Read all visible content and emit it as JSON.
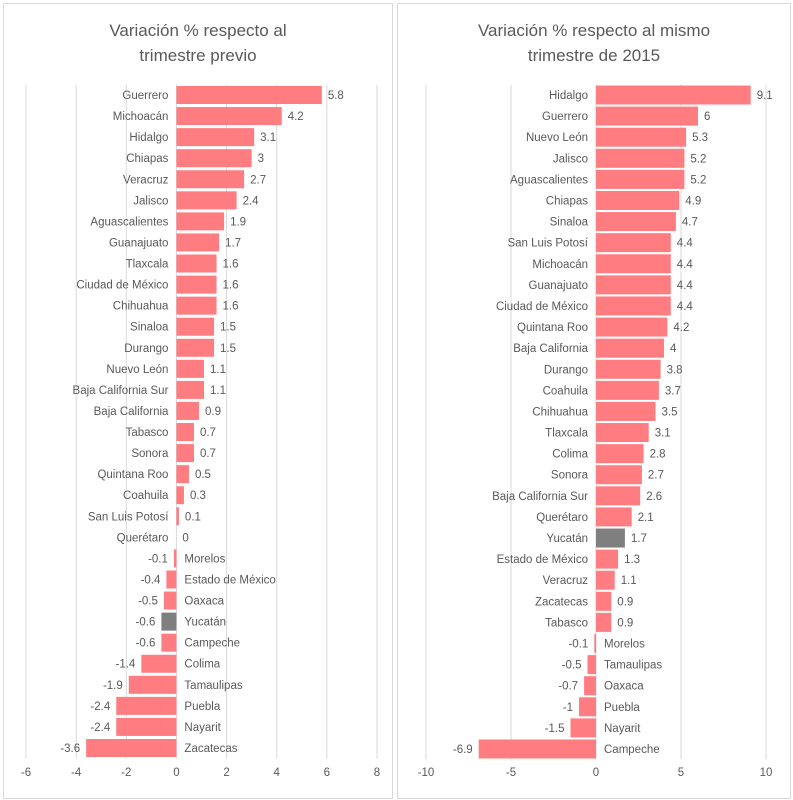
{
  "colors": {
    "bar": "#FF7C80",
    "highlight": "#7F7F7F",
    "grid": "#D9D9D9",
    "text": "#595959"
  },
  "chart_data": [
    {
      "type": "bar",
      "orientation": "horizontal",
      "title": "Variación % respecto al trimestre previo",
      "xlim": [
        -6,
        8
      ],
      "xticks": [
        -6,
        -4,
        -2,
        0,
        2,
        4,
        6,
        8
      ],
      "grid": true,
      "highlight": "Yucatán",
      "categories": [
        "Guerrero",
        "Michoacán",
        "Hidalgo",
        "Chiapas",
        "Veracruz",
        "Jalisco",
        "Aguascalientes",
        "Guanajuato",
        "Tlaxcala",
        "Ciudad de México",
        "Chihuahua",
        "Sinaloa",
        "Durango",
        "Nuevo León",
        "Baja California Sur",
        "Baja California",
        "Tabasco",
        "Sonora",
        "Quintana Roo",
        "Coahuila",
        "San Luis Potosí",
        "Querétaro",
        "Morelos",
        "Estado de México",
        "Oaxaca",
        "Yucatán",
        "Campeche",
        "Colima",
        "Tamaulipas",
        "Puebla",
        "Nayarit",
        "Zacatecas"
      ],
      "values": [
        5.8,
        4.2,
        3.1,
        3,
        2.7,
        2.4,
        1.9,
        1.7,
        1.6,
        1.6,
        1.6,
        1.5,
        1.5,
        1.1,
        1.1,
        0.9,
        0.7,
        0.7,
        0.5,
        0.3,
        0.1,
        0,
        -0.1,
        -0.4,
        -0.5,
        -0.6,
        -0.6,
        -1.4,
        -1.9,
        -2.4,
        -2.4,
        -3.6
      ]
    },
    {
      "type": "bar",
      "orientation": "horizontal",
      "title": "Variación % respecto al mismo trimestre de 2015",
      "xlim": [
        -10,
        10
      ],
      "xticks": [
        -10,
        -5,
        0,
        5,
        10
      ],
      "grid": true,
      "highlight": "Yucatán",
      "categories": [
        "Hidalgo",
        "Guerrero",
        "Nuevo León",
        "Jalisco",
        "Aguascalientes",
        "Chiapas",
        "Sinaloa",
        "San Luis Potosí",
        "Michoacán",
        "Guanajuato",
        "Ciudad de México",
        "Quintana Roo",
        "Baja California",
        "Durango",
        "Coahuila",
        "Chihuahua",
        "Tlaxcala",
        "Colima",
        "Sonora",
        "Baja California Sur",
        "Querétaro",
        "Yucatán",
        "Estado de México",
        "Veracruz",
        "Zacatecas",
        "Tabasco",
        "Morelos",
        "Tamaulipas",
        "Oaxaca",
        "Puebla",
        "Nayarit",
        "Campeche"
      ],
      "values": [
        9.1,
        6,
        5.3,
        5.2,
        5.2,
        4.9,
        4.7,
        4.4,
        4.4,
        4.4,
        4.4,
        4.2,
        4,
        3.8,
        3.7,
        3.5,
        3.1,
        2.8,
        2.7,
        2.6,
        2.1,
        1.7,
        1.3,
        1.1,
        0.9,
        0.9,
        -0.1,
        -0.5,
        -0.7,
        -1,
        -1.5,
        -6.9
      ]
    }
  ]
}
